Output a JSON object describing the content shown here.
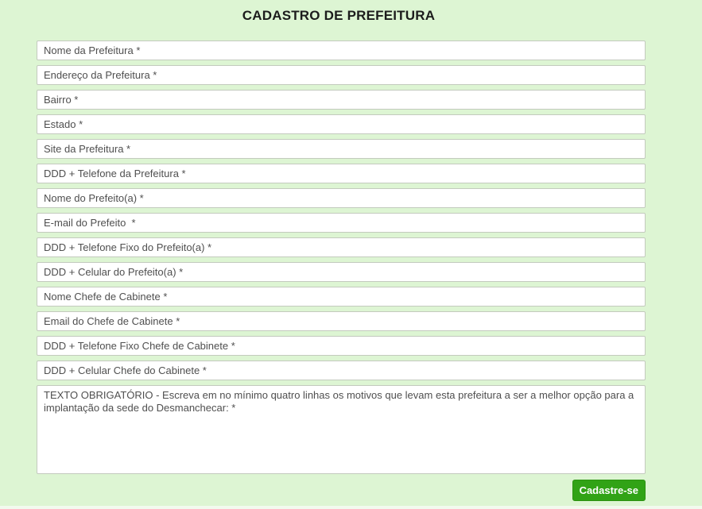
{
  "page": {
    "title": "CADASTRO DE PREFEITURA",
    "background_color": "#ddf5d3"
  },
  "form": {
    "fields": [
      {
        "name": "nome-prefeitura",
        "placeholder": "Nome da Prefeitura *",
        "value": ""
      },
      {
        "name": "endereco-prefeitura",
        "placeholder": "Endereço da Prefeitura *",
        "value": ""
      },
      {
        "name": "bairro",
        "placeholder": "Bairro *",
        "value": ""
      },
      {
        "name": "estado",
        "placeholder": "Estado *",
        "value": ""
      },
      {
        "name": "site-prefeitura",
        "placeholder": "Site da Prefeitura *",
        "value": ""
      },
      {
        "name": "ddd-telefone-prefeitura",
        "placeholder": "DDD + Telefone da Prefeitura *",
        "value": ""
      },
      {
        "name": "nome-prefeito",
        "placeholder": "Nome do Prefeito(a) *",
        "value": ""
      },
      {
        "name": "email-prefeito",
        "placeholder": "E-mail do Prefeito  *",
        "value": ""
      },
      {
        "name": "ddd-telefone-fixo-prefeito",
        "placeholder": "DDD + Telefone Fixo do Prefeito(a) *",
        "value": ""
      },
      {
        "name": "ddd-celular-prefeito",
        "placeholder": "DDD + Celular do Prefeito(a) *",
        "value": ""
      },
      {
        "name": "nome-chefe-cabinete",
        "placeholder": "Nome Chefe de Cabinete *",
        "value": ""
      },
      {
        "name": "email-chefe-cabinete",
        "placeholder": "Email do Chefe de Cabinete *",
        "value": ""
      },
      {
        "name": "ddd-telefone-fixo-chefe-cabinete",
        "placeholder": "DDD + Telefone Fixo Chefe de Cabinete *",
        "value": ""
      },
      {
        "name": "ddd-celular-chefe-cabinete",
        "placeholder": "DDD + Celular Chefe do Cabinete *",
        "value": ""
      }
    ],
    "textarea": {
      "name": "motivos-obrigatorio",
      "placeholder": "TEXTO OBRIGATÓRIO - Escreva em no mínimo quatro linhas os motivos que levam esta prefeitura a ser a melhor opção para a implantação da sede do Desmanchecar: *",
      "value": ""
    },
    "submit_label": "Cadastre-se",
    "submit_color": "#31a316"
  }
}
